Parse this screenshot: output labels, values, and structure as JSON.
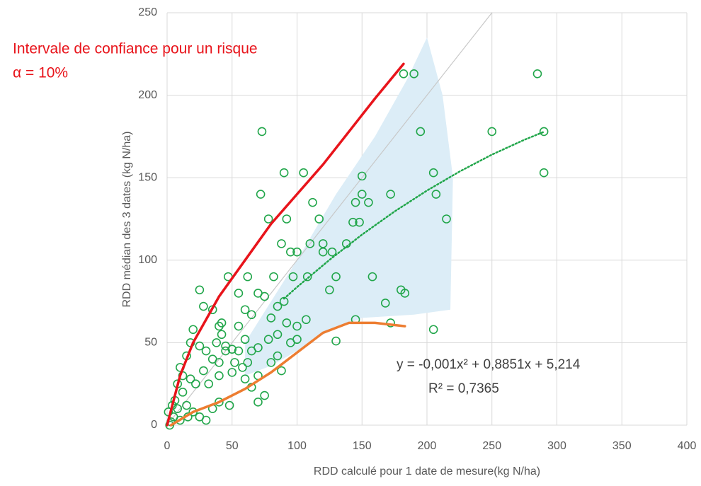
{
  "chart_data": {
    "type": "scatter",
    "annotations": [
      "Intervale de confiance pour un risque",
      "α = 10%"
    ],
    "equation": "y = -0,001x² + 0,8851x + 5,214",
    "r_squared": "R² = 0,7365",
    "xlabel": "RDD calculé pour 1 date de mesure(kg N/ha)",
    "ylabel": "RDD médian des 3 dates (kg N/ha)",
    "xlim": [
      0,
      400
    ],
    "ylim": [
      0,
      250
    ],
    "xticks": [
      0,
      50,
      100,
      150,
      200,
      250,
      300,
      350,
      400
    ],
    "yticks": [
      0,
      50,
      100,
      150,
      200,
      250
    ],
    "grid": true,
    "series": [
      {
        "type": "area",
        "color": "#dcedf7",
        "x": [
          60,
          80,
          100,
          130,
          160,
          185,
          200,
          212,
          220,
          218,
          190,
          150,
          120,
          100,
          80,
          60
        ],
        "values": [
          50,
          75,
          100,
          140,
          175,
          210,
          235,
          200,
          150,
          70,
          67,
          65,
          55,
          45,
          36,
          30
        ]
      },
      {
        "type": "line",
        "color": "#c8c8c8",
        "dash": "none",
        "width": 1.2,
        "x": [
          0,
          250
        ],
        "values": [
          0,
          250
        ]
      },
      {
        "type": "scatter",
        "color": "#21a64a",
        "x": [
          182,
          190,
          285,
          73,
          195,
          250,
          290,
          290,
          90,
          105,
          150,
          205,
          72,
          150,
          172,
          207,
          112,
          145,
          155,
          78,
          92,
          117,
          143,
          148,
          215,
          88,
          110,
          120,
          138,
          120,
          100,
          95,
          127,
          125,
          108,
          158,
          130,
          180,
          183,
          168,
          172,
          205,
          145,
          130,
          47,
          62,
          82,
          97,
          70,
          55,
          75,
          85,
          90,
          92,
          100,
          107,
          25,
          28,
          20,
          35,
          40,
          42,
          45,
          50,
          55,
          60,
          65,
          70,
          30,
          35,
          40,
          45,
          25,
          15,
          10,
          12,
          18,
          22,
          28,
          32,
          40,
          50,
          60,
          65,
          70,
          80,
          85,
          88,
          75,
          70,
          40,
          35,
          48,
          20,
          15,
          5,
          3,
          8,
          10,
          2,
          6,
          12,
          25,
          30,
          55,
          60,
          65,
          80,
          85,
          95,
          100,
          78,
          52,
          58,
          62,
          38,
          42,
          18,
          8,
          4,
          1,
          16
        ],
        "values": [
          213,
          213,
          213,
          178,
          178,
          178,
          178,
          153,
          153,
          153,
          151,
          153,
          140,
          140,
          140,
          140,
          135,
          135,
          135,
          125,
          125,
          125,
          123,
          123,
          125,
          110,
          110,
          110,
          110,
          105,
          105,
          105,
          105,
          82,
          90,
          90,
          90,
          82,
          80,
          74,
          62,
          58,
          64,
          51,
          90,
          90,
          90,
          90,
          80,
          80,
          78,
          72,
          75,
          62,
          60,
          64,
          82,
          72,
          58,
          70,
          60,
          62,
          48,
          46,
          45,
          52,
          45,
          47,
          45,
          40,
          38,
          45,
          48,
          42,
          35,
          30,
          28,
          25,
          33,
          25,
          30,
          32,
          28,
          23,
          30,
          38,
          42,
          33,
          18,
          14,
          14,
          10,
          12,
          8,
          12,
          5,
          2,
          10,
          3,
          0,
          15,
          20,
          5,
          3,
          60,
          70,
          67,
          65,
          55,
          50,
          52,
          52,
          38,
          35,
          38,
          50,
          55,
          50,
          25,
          12,
          8,
          5
        ]
      },
      {
        "type": "line",
        "color": "#e8141b",
        "dash": "none",
        "width": 3.5,
        "x": [
          0,
          10,
          20,
          40,
          60,
          80,
          100,
          120,
          140,
          160,
          182
        ],
        "values": [
          0,
          30,
          50,
          78,
          100,
          122,
          140,
          158,
          178,
          198,
          219
        ]
      },
      {
        "type": "line",
        "color": "#ed7d31",
        "dash": "none",
        "width": 3.5,
        "x": [
          3,
          20,
          40,
          60,
          80,
          100,
          120,
          140,
          160,
          183
        ],
        "values": [
          0,
          8,
          14,
          22,
          32,
          44,
          56,
          62,
          62,
          60
        ]
      },
      {
        "type": "line",
        "color": "#21a64a",
        "dash": "2 3",
        "width": 2.5,
        "x": [
          90,
          100,
          125,
          150,
          175,
          200,
          225,
          250,
          275,
          290
        ],
        "values": [
          76.7,
          83.7,
          100.2,
          115.5,
          129.5,
          142.2,
          153.7,
          164,
          173,
          177.8
        ]
      }
    ]
  }
}
